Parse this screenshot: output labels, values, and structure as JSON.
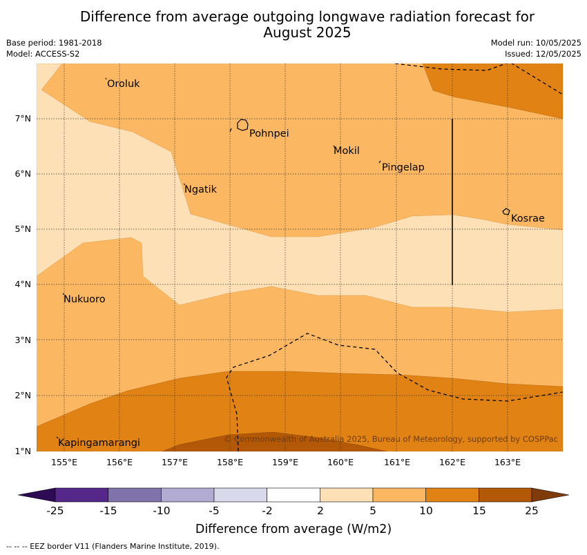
{
  "title_line1": "Difference from average outgoing longwave radiation forecast for",
  "title_line2": "August 2025",
  "base_period": "Base period: 1981-2018",
  "model": "Model: ACCESS-S2",
  "model_run": "Model run: 10/05/2025",
  "issued": "Issued: 12/05/2025",
  "lat_labels": [
    "1°N",
    "2°N",
    "3°N",
    "4°N",
    "5°N",
    "6°N",
    "7°N"
  ],
  "lon_labels": [
    "155°E",
    "156°E",
    "157°E",
    "158°E",
    "159°E",
    "160°E",
    "161°E",
    "162°E",
    "163°E"
  ],
  "places": {
    "oroluk": "Oroluk",
    "pohnpei": "Pohnpei",
    "mokil": "Mokil",
    "pingelap": "Pingelap",
    "ngatik": "Ngatik",
    "kosrae": "Kosrae",
    "nukuoro": "Nukuoro",
    "kapingamarangi": "Kapingamarangi"
  },
  "copyright": "© Commonwealth of Australia 2025, Bureau of Meteorology, supported by COSPPac",
  "colorbar": {
    "ticks": [
      "-25",
      "-15",
      "-10",
      "-5",
      "-2",
      "2",
      "5",
      "10",
      "15",
      "25"
    ],
    "label": "Difference from average (W/m2)",
    "colors": [
      "#2d0b55",
      "#542788",
      "#8073ac",
      "#b2abd2",
      "#d8daeb",
      "#ffffff",
      "#fee0b6",
      "#fbb761",
      "#e08214",
      "#b35806",
      "#7f3b08"
    ]
  },
  "footer": "--  --  -- EEZ border V11 (Flanders Marine Institute, 2019)."
}
